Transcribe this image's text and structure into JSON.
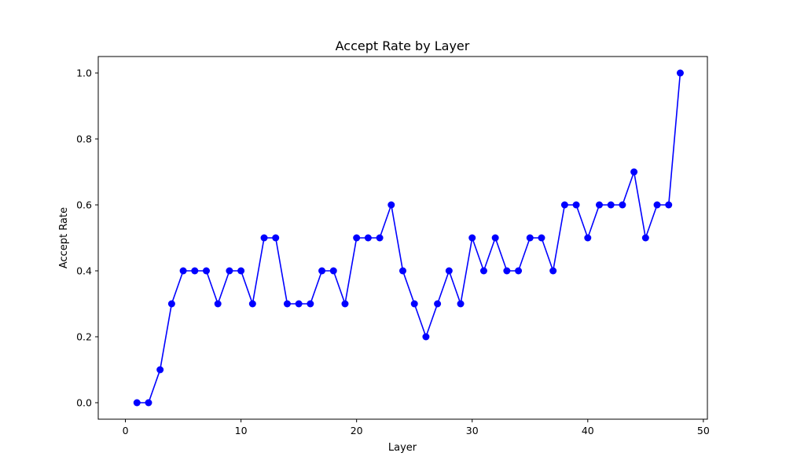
{
  "chart_data": {
    "type": "line",
    "title": "Accept Rate by Layer",
    "xlabel": "Layer",
    "ylabel": "Accept Rate",
    "xlim": [
      -2.35,
      50.35
    ],
    "ylim": [
      -0.05,
      1.05
    ],
    "xticks": [
      0,
      10,
      20,
      30,
      40,
      50
    ],
    "yticks": [
      0.0,
      0.2,
      0.4,
      0.6,
      0.8,
      1.0
    ],
    "xtick_labels": [
      "0",
      "10",
      "20",
      "30",
      "40",
      "50"
    ],
    "ytick_labels": [
      "0.0",
      "0.2",
      "0.4",
      "0.6",
      "0.8",
      "1.0"
    ],
    "grid": false,
    "color": "#0000ff",
    "marker": "circle",
    "series": [
      {
        "x": [
          1,
          2,
          3,
          4,
          5,
          6,
          7,
          8,
          9,
          10,
          11,
          12,
          13,
          14,
          15,
          16,
          17,
          18,
          19,
          20,
          21,
          22,
          23,
          24,
          25,
          26,
          27,
          28,
          29,
          30,
          31,
          32,
          33,
          34,
          35,
          36,
          37,
          38,
          39,
          40,
          41,
          42,
          43,
          44,
          45,
          46,
          47,
          48
        ],
        "values": [
          0.0,
          0.0,
          0.1,
          0.3,
          0.4,
          0.4,
          0.4,
          0.3,
          0.4,
          0.4,
          0.3,
          0.5,
          0.5,
          0.3,
          0.3,
          0.3,
          0.4,
          0.4,
          0.3,
          0.5,
          0.5,
          0.5,
          0.6,
          0.4,
          0.3,
          0.2,
          0.3,
          0.4,
          0.3,
          0.5,
          0.4,
          0.5,
          0.4,
          0.4,
          0.5,
          0.5,
          0.4,
          0.6,
          0.6,
          0.5,
          0.6,
          0.6,
          0.6,
          0.7,
          0.5,
          0.6,
          0.6,
          1.0
        ]
      }
    ]
  }
}
